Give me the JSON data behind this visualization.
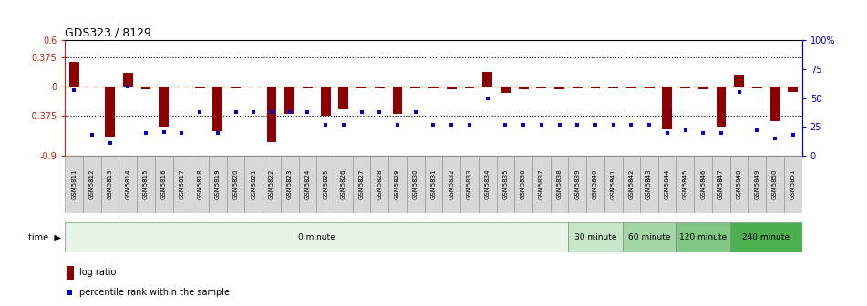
{
  "title": "GDS323 / 8129",
  "samples": [
    "GSM5811",
    "GSM5812",
    "GSM5813",
    "GSM5814",
    "GSM5815",
    "GSM5816",
    "GSM5817",
    "GSM5818",
    "GSM5819",
    "GSM5820",
    "GSM5821",
    "GSM5822",
    "GSM5823",
    "GSM5824",
    "GSM5825",
    "GSM5826",
    "GSM5827",
    "GSM5828",
    "GSM5829",
    "GSM5830",
    "GSM5831",
    "GSM5832",
    "GSM5833",
    "GSM5834",
    "GSM5835",
    "GSM5836",
    "GSM5837",
    "GSM5838",
    "GSM5839",
    "GSM5840",
    "GSM5841",
    "GSM5842",
    "GSM5843",
    "GSM5844",
    "GSM5845",
    "GSM5846",
    "GSM5847",
    "GSM5848",
    "GSM5849",
    "GSM5850",
    "GSM5851"
  ],
  "log_ratio": [
    0.32,
    -0.02,
    -0.65,
    0.17,
    -0.04,
    -0.52,
    -0.02,
    -0.03,
    -0.58,
    -0.03,
    -0.02,
    -0.72,
    -0.35,
    -0.03,
    -0.38,
    -0.3,
    -0.03,
    -0.03,
    -0.35,
    -0.03,
    -0.03,
    -0.04,
    -0.03,
    0.18,
    -0.09,
    -0.04,
    -0.03,
    -0.04,
    -0.03,
    -0.03,
    -0.03,
    -0.03,
    -0.03,
    -0.55,
    -0.03,
    -0.04,
    -0.52,
    0.15,
    -0.03,
    -0.45,
    -0.07
  ],
  "percentile": [
    57,
    18,
    11,
    60,
    20,
    21,
    20,
    38,
    20,
    38,
    38,
    38,
    38,
    38,
    27,
    27,
    38,
    38,
    27,
    38,
    27,
    27,
    27,
    50,
    27,
    27,
    27,
    27,
    27,
    27,
    27,
    27,
    27,
    20,
    22,
    20,
    20,
    55,
    22,
    15,
    18
  ],
  "time_groups": [
    {
      "label": "0 minute",
      "start": 0,
      "end": 28,
      "color": "#e8f5e9"
    },
    {
      "label": "30 minute",
      "start": 28,
      "end": 31,
      "color": "#c8e6c9"
    },
    {
      "label": "60 minute",
      "start": 31,
      "end": 34,
      "color": "#a5d6a7"
    },
    {
      "label": "120 minute",
      "start": 34,
      "end": 37,
      "color": "#81c784"
    },
    {
      "label": "240 minute",
      "start": 37,
      "end": 41,
      "color": "#4caf50"
    }
  ],
  "bar_color": "#8b0000",
  "dot_color": "#0000cc",
  "ylim_left": [
    -0.9,
    0.6
  ],
  "ylim_right": [
    0,
    100
  ],
  "yticks_left": [
    -0.9,
    -0.375,
    0,
    0.375,
    0.6
  ],
  "yticks_left_labels": [
    "-0.9",
    "-0.375",
    "0",
    "0.375",
    "0.6"
  ],
  "yticks_right": [
    0,
    25,
    50,
    75,
    100
  ],
  "yticks_right_labels": [
    "0",
    "25",
    "50",
    "75",
    "100%"
  ],
  "hline_dotted": [
    -0.375,
    0.375
  ],
  "zero_line_color": "#cc2200",
  "label_cell_color": "#d8d8d8",
  "label_cell_edge": "#999999"
}
